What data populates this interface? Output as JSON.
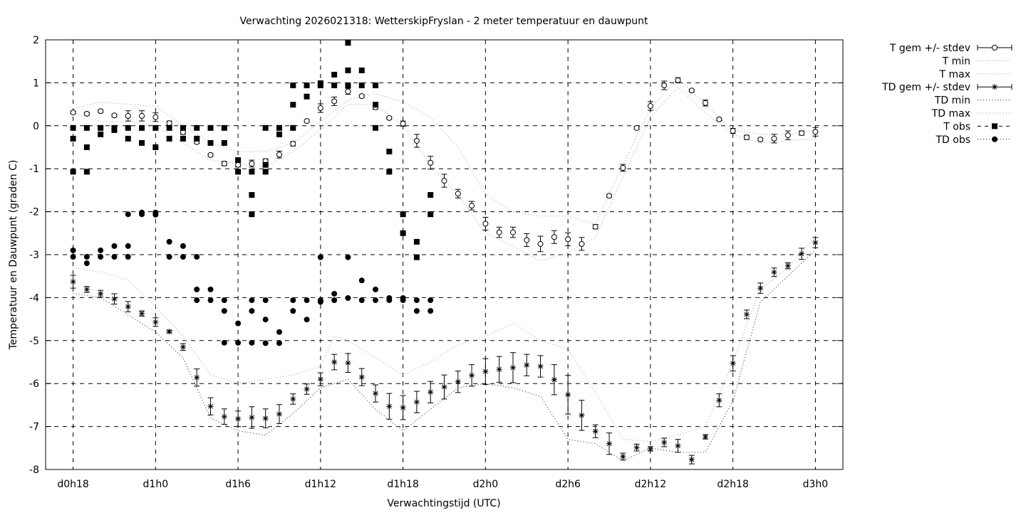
{
  "chart_data": {
    "type": "scatter",
    "title": "Verwachting 2026021318: WetterskipFryslan - 2 meter temperatuur en dauwpunt",
    "xlabel": "Verwachtingstijd (UTC)",
    "ylabel": "Temperatuur en Dauwpunt (graden C)",
    "xlim_hours": [
      16,
      74
    ],
    "ylim": [
      -8,
      2
    ],
    "grid": true,
    "legend_placement": "outside-top-right",
    "x_ticks": [
      {
        "hour": 18,
        "label": "d0h18"
      },
      {
        "hour": 24,
        "label": "d1h0"
      },
      {
        "hour": 30,
        "label": "d1h6"
      },
      {
        "hour": 36,
        "label": "d1h12"
      },
      {
        "hour": 42,
        "label": "d1h18"
      },
      {
        "hour": 48,
        "label": "d2h0"
      },
      {
        "hour": 54,
        "label": "d2h6"
      },
      {
        "hour": 60,
        "label": "d2h12"
      },
      {
        "hour": 66,
        "label": "d2h18"
      },
      {
        "hour": 72,
        "label": "d3h0"
      }
    ],
    "y_ticks": [
      {
        "value": 2,
        "label": "2"
      },
      {
        "value": 1,
        "label": "1"
      },
      {
        "value": 0,
        "label": "0"
      },
      {
        "value": -1,
        "label": "-1"
      },
      {
        "value": -2,
        "label": "-2"
      },
      {
        "value": -3,
        "label": "-3"
      },
      {
        "value": -4,
        "label": "-4"
      },
      {
        "value": -5,
        "label": "-5"
      },
      {
        "value": -6,
        "label": "-6"
      },
      {
        "value": -7,
        "label": "-7"
      },
      {
        "value": -8,
        "label": "-8"
      }
    ],
    "legend": [
      {
        "key": "t_mean",
        "label": "T gem +/- stdev"
      },
      {
        "key": "t_min",
        "label": "T min"
      },
      {
        "key": "t_max",
        "label": "T max"
      },
      {
        "key": "td_mean",
        "label": "TD gem +/- stdev"
      },
      {
        "key": "td_min",
        "label": "TD min"
      },
      {
        "key": "td_max",
        "label": "TD max"
      },
      {
        "key": "t_obs",
        "label": "T obs"
      },
      {
        "key": "td_obs",
        "label": "TD obs"
      }
    ],
    "hours": [
      18,
      19,
      20,
      21,
      22,
      23,
      24,
      25,
      26,
      27,
      28,
      29,
      30,
      31,
      32,
      33,
      34,
      35,
      36,
      37,
      38,
      39,
      40,
      41,
      42,
      43,
      44,
      45,
      46,
      47,
      48,
      49,
      50,
      51,
      52,
      53,
      54,
      55,
      56,
      57,
      58,
      59,
      60,
      61,
      62,
      63,
      64,
      65,
      66,
      67,
      68,
      69,
      70,
      71,
      72
    ],
    "t_mean": [
      0.31,
      0.28,
      0.34,
      0.24,
      0.23,
      0.23,
      0.2,
      0.06,
      -0.15,
      -0.38,
      -0.68,
      -0.88,
      -0.91,
      -0.88,
      -0.82,
      -0.67,
      -0.42,
      0.11,
      0.41,
      0.57,
      0.8,
      0.69,
      0.43,
      0.18,
      0.05,
      -0.35,
      -0.86,
      -1.28,
      -1.58,
      -1.86,
      -2.28,
      -2.48,
      -2.48,
      -2.66,
      -2.75,
      -2.59,
      -2.64,
      -2.75,
      -2.35,
      -1.63,
      -0.98,
      -0.05,
      0.46,
      0.94,
      1.06,
      0.82,
      0.53,
      0.15,
      -0.12,
      -0.27,
      -0.32,
      -0.3,
      -0.22,
      -0.17,
      -0.14
    ],
    "t_stdev": [
      0.03,
      0.03,
      0.03,
      0.03,
      0.12,
      0.12,
      0.1,
      0.05,
      0.05,
      0.03,
      0.03,
      0.05,
      0.05,
      0.08,
      0.05,
      0.08,
      0.05,
      0.03,
      0.1,
      0.1,
      0.07,
      0.03,
      0.05,
      0.03,
      0.06,
      0.15,
      0.15,
      0.15,
      0.1,
      0.1,
      0.15,
      0.12,
      0.12,
      0.15,
      0.18,
      0.15,
      0.15,
      0.15,
      0.05,
      0.03,
      0.08,
      0.03,
      0.1,
      0.1,
      0.06,
      0.03,
      0.07,
      0.03,
      0.06,
      0.05,
      0.03,
      0.1,
      0.1,
      0.05,
      0.1
    ],
    "td_mean": [
      -3.63,
      -3.81,
      -3.91,
      -4.03,
      -4.21,
      -4.37,
      -4.57,
      -4.79,
      -5.15,
      -5.86,
      -6.53,
      -6.77,
      -6.82,
      -6.79,
      -6.81,
      -6.71,
      -6.36,
      -6.13,
      -5.9,
      -5.5,
      -5.52,
      -5.85,
      -6.23,
      -6.53,
      -6.56,
      -6.43,
      -6.2,
      -6.08,
      -5.96,
      -5.81,
      -5.72,
      -5.67,
      -5.63,
      -5.57,
      -5.6,
      -5.91,
      -6.26,
      -6.74,
      -7.11,
      -7.4,
      -7.7,
      -7.49,
      -7.52,
      -7.37,
      -7.45,
      -7.77,
      -7.24,
      -6.39,
      -5.53,
      -4.39,
      -3.78,
      -3.41,
      -3.26,
      -2.98,
      -2.72
    ],
    "td_stdev": [
      0.15,
      0.07,
      0.08,
      0.12,
      0.12,
      0.06,
      0.1,
      0.03,
      0.08,
      0.2,
      0.2,
      0.18,
      0.18,
      0.25,
      0.22,
      0.22,
      0.12,
      0.12,
      0.15,
      0.18,
      0.22,
      0.2,
      0.2,
      0.3,
      0.28,
      0.25,
      0.25,
      0.28,
      0.25,
      0.25,
      0.3,
      0.3,
      0.35,
      0.25,
      0.25,
      0.35,
      0.45,
      0.35,
      0.15,
      0.25,
      0.08,
      0.08,
      0.05,
      0.1,
      0.15,
      0.1,
      0.05,
      0.15,
      0.18,
      0.1,
      0.12,
      0.1,
      0.07,
      0.13,
      0.12
    ],
    "line_hours": [
      18,
      20,
      22,
      24,
      26,
      28,
      30,
      32,
      34,
      36,
      37,
      38,
      40,
      42,
      44,
      46,
      48,
      50,
      52,
      54,
      56,
      58,
      60,
      62,
      64,
      66,
      68,
      70,
      72
    ],
    "t_max": [
      0.4,
      0.55,
      0.5,
      0.45,
      0.0,
      -0.4,
      -0.6,
      -0.6,
      -0.4,
      0.1,
      0.35,
      0.6,
      0.75,
      0.55,
      0.2,
      -0.5,
      -1.6,
      -2.0,
      -2.1,
      -2.1,
      -2.3,
      -0.9,
      0.4,
      1.1,
      0.5,
      -0.1,
      -0.2,
      -0.2,
      -0.1
    ],
    "t_min": [
      0.3,
      0.1,
      0.1,
      0.0,
      -0.4,
      -0.8,
      -0.9,
      -0.95,
      -0.6,
      -0.1,
      0.2,
      0.5,
      0.5,
      0.0,
      -0.9,
      -1.6,
      -2.5,
      -2.8,
      -3.15,
      -2.95,
      -2.6,
      -1.2,
      0.2,
      0.9,
      0.3,
      -0.2,
      -0.4,
      -0.35,
      -0.3
    ],
    "td_max": [
      -3.3,
      -3.4,
      -3.6,
      -4.2,
      -4.9,
      -5.8,
      -6.0,
      -5.9,
      -5.8,
      -5.6,
      -4.9,
      -5.0,
      -5.4,
      -5.8,
      -5.5,
      -5.1,
      -4.9,
      -4.6,
      -5.0,
      -5.2,
      -6.2,
      -7.3,
      -7.35,
      -7.2,
      -7.0,
      -5.5,
      -3.8,
      -3.3,
      -2.6
    ],
    "td_min": [
      -3.9,
      -4.0,
      -4.4,
      -4.8,
      -5.4,
      -6.8,
      -7.1,
      -7.2,
      -6.7,
      -6.1,
      -6.0,
      -5.9,
      -6.6,
      -7.1,
      -6.6,
      -6.1,
      -6.0,
      -6.1,
      -6.3,
      -7.3,
      -7.4,
      -7.8,
      -7.5,
      -7.6,
      -7.6,
      -6.4,
      -4.1,
      -3.5,
      -2.9
    ],
    "t_obs": [
      [
        18,
        -0.05
      ],
      [
        18,
        -0.3
      ],
      [
        18,
        -1.07
      ],
      [
        19,
        -0.05
      ],
      [
        19,
        -0.5
      ],
      [
        19,
        -1.07
      ],
      [
        20,
        -0.05
      ],
      [
        20,
        -0.2
      ],
      [
        21,
        -0.05
      ],
      [
        21,
        -0.1
      ],
      [
        22,
        -0.05
      ],
      [
        22,
        -0.3
      ],
      [
        23,
        -0.05
      ],
      [
        23,
        -0.4
      ],
      [
        24,
        -0.05
      ],
      [
        24,
        -0.5
      ],
      [
        25,
        -0.05
      ],
      [
        25,
        -0.3
      ],
      [
        26,
        -0.05
      ],
      [
        26,
        -0.3
      ],
      [
        27,
        -0.05
      ],
      [
        27,
        -0.3
      ],
      [
        28,
        -0.05
      ],
      [
        28,
        -0.4
      ],
      [
        29,
        -0.05
      ],
      [
        29,
        -0.4
      ],
      [
        30,
        -0.8
      ],
      [
        30,
        -1.07
      ],
      [
        31,
        -1.07
      ],
      [
        31,
        -1.61
      ],
      [
        31,
        -2.06
      ],
      [
        32,
        -0.05
      ],
      [
        32,
        -0.91
      ],
      [
        32,
        -1.07
      ],
      [
        33,
        -0.05
      ],
      [
        33,
        -0.2
      ],
      [
        34,
        0.94
      ],
      [
        34,
        0.49
      ],
      [
        34,
        -0.05
      ],
      [
        35,
        0.94
      ],
      [
        35,
        0.68
      ],
      [
        36,
        0.99
      ],
      [
        36,
        0.94
      ],
      [
        37,
        1.19
      ],
      [
        37,
        0.94
      ],
      [
        38,
        1.93
      ],
      [
        38,
        1.29
      ],
      [
        38,
        0.94
      ],
      [
        39,
        1.29
      ],
      [
        39,
        0.94
      ],
      [
        40,
        0.94
      ],
      [
        40,
        0.49
      ],
      [
        40,
        -0.05
      ],
      [
        41,
        -0.6
      ],
      [
        41,
        -1.07
      ],
      [
        42,
        -2.06
      ],
      [
        42,
        -2.5
      ],
      [
        43,
        -2.7
      ],
      [
        43,
        -3.06
      ],
      [
        44,
        -1.61
      ],
      [
        44,
        -2.06
      ]
    ],
    "td_obs": [
      [
        18,
        -2.9
      ],
      [
        18,
        -3.05
      ],
      [
        19,
        -3.05
      ],
      [
        19,
        -3.2
      ],
      [
        20,
        -2.9
      ],
      [
        20,
        -3.05
      ],
      [
        21,
        -2.8
      ],
      [
        21,
        -3.05
      ],
      [
        22,
        -2.06
      ],
      [
        22,
        -2.8
      ],
      [
        22,
        -3.05
      ],
      [
        23,
        -2.02
      ],
      [
        23,
        -2.06
      ],
      [
        24,
        -2.02
      ],
      [
        24,
        -2.07
      ],
      [
        25,
        -2.7
      ],
      [
        25,
        -3.05
      ],
      [
        26,
        -2.8
      ],
      [
        26,
        -3.05
      ],
      [
        27,
        -3.05
      ],
      [
        27,
        -3.81
      ],
      [
        27,
        -4.06
      ],
      [
        28,
        -3.81
      ],
      [
        28,
        -4.06
      ],
      [
        29,
        -4.06
      ],
      [
        29,
        -4.31
      ],
      [
        29,
        -5.05
      ],
      [
        30,
        -4.6
      ],
      [
        30,
        -5.05
      ],
      [
        31,
        -4.06
      ],
      [
        31,
        -4.31
      ],
      [
        31,
        -5.05
      ],
      [
        32,
        -4.06
      ],
      [
        32,
        -4.51
      ],
      [
        32,
        -5.06
      ],
      [
        33,
        -4.8
      ],
      [
        33,
        -5.06
      ],
      [
        34,
        -4.06
      ],
      [
        34,
        -4.31
      ],
      [
        35,
        -4.06
      ],
      [
        35,
        -4.51
      ],
      [
        36,
        -3.06
      ],
      [
        36,
        -4.06
      ],
      [
        36,
        -4.1
      ],
      [
        37,
        -3.91
      ],
      [
        37,
        -4.06
      ],
      [
        38,
        -3.06
      ],
      [
        38,
        -4.01
      ],
      [
        39,
        -3.6
      ],
      [
        39,
        -4.06
      ],
      [
        40,
        -3.81
      ],
      [
        40,
        -4.06
      ],
      [
        41,
        -4.01
      ],
      [
        41,
        -4.06
      ],
      [
        42,
        -4.01
      ],
      [
        42,
        -4.06
      ],
      [
        43,
        -4.06
      ],
      [
        43,
        -4.31
      ],
      [
        44,
        -4.06
      ],
      [
        44,
        -4.31
      ]
    ]
  }
}
